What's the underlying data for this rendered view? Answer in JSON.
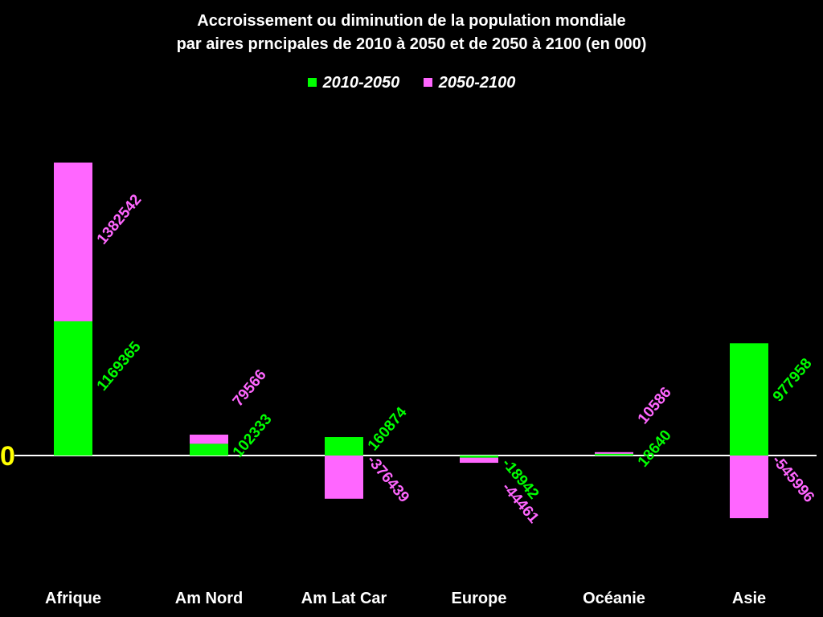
{
  "title_line1": "Accroissement ou diminution de la population mondiale",
  "title_line2": "par  aires prncipales de 2010 à 2050 et de 2050 à 2100 (en 000)",
  "zero_label": "0",
  "colors": {
    "background": "#000000",
    "series_2010_2050": "#00ff00",
    "series_2050_2100": "#ff66ff",
    "zero_label": "#ffff00",
    "axis": "#ffffff",
    "text": "#ffffff"
  },
  "chart_data": {
    "type": "bar",
    "stacked": true,
    "title": "Accroissement ou diminution de la population mondiale par  aires prncipales de 2010 à 2050 et de 2050 à 2100 (en 000)",
    "categories": [
      "Afrique",
      "Am Nord",
      "Am Lat Car",
      "Europe",
      "Océanie",
      "Asie"
    ],
    "series": [
      {
        "name": "2010-2050",
        "color": "#00ff00",
        "values": [
          1169365,
          102333,
          160874,
          -18942,
          18640,
          977958
        ]
      },
      {
        "name": "2050-2100",
        "color": "#ff66ff",
        "values": [
          1382542,
          79566,
          -376439,
          -44461,
          10586,
          -545996
        ]
      }
    ],
    "ylim": [
      -1400000,
      2650000
    ],
    "grid": false,
    "legend": "top-center",
    "data_labels": true
  }
}
